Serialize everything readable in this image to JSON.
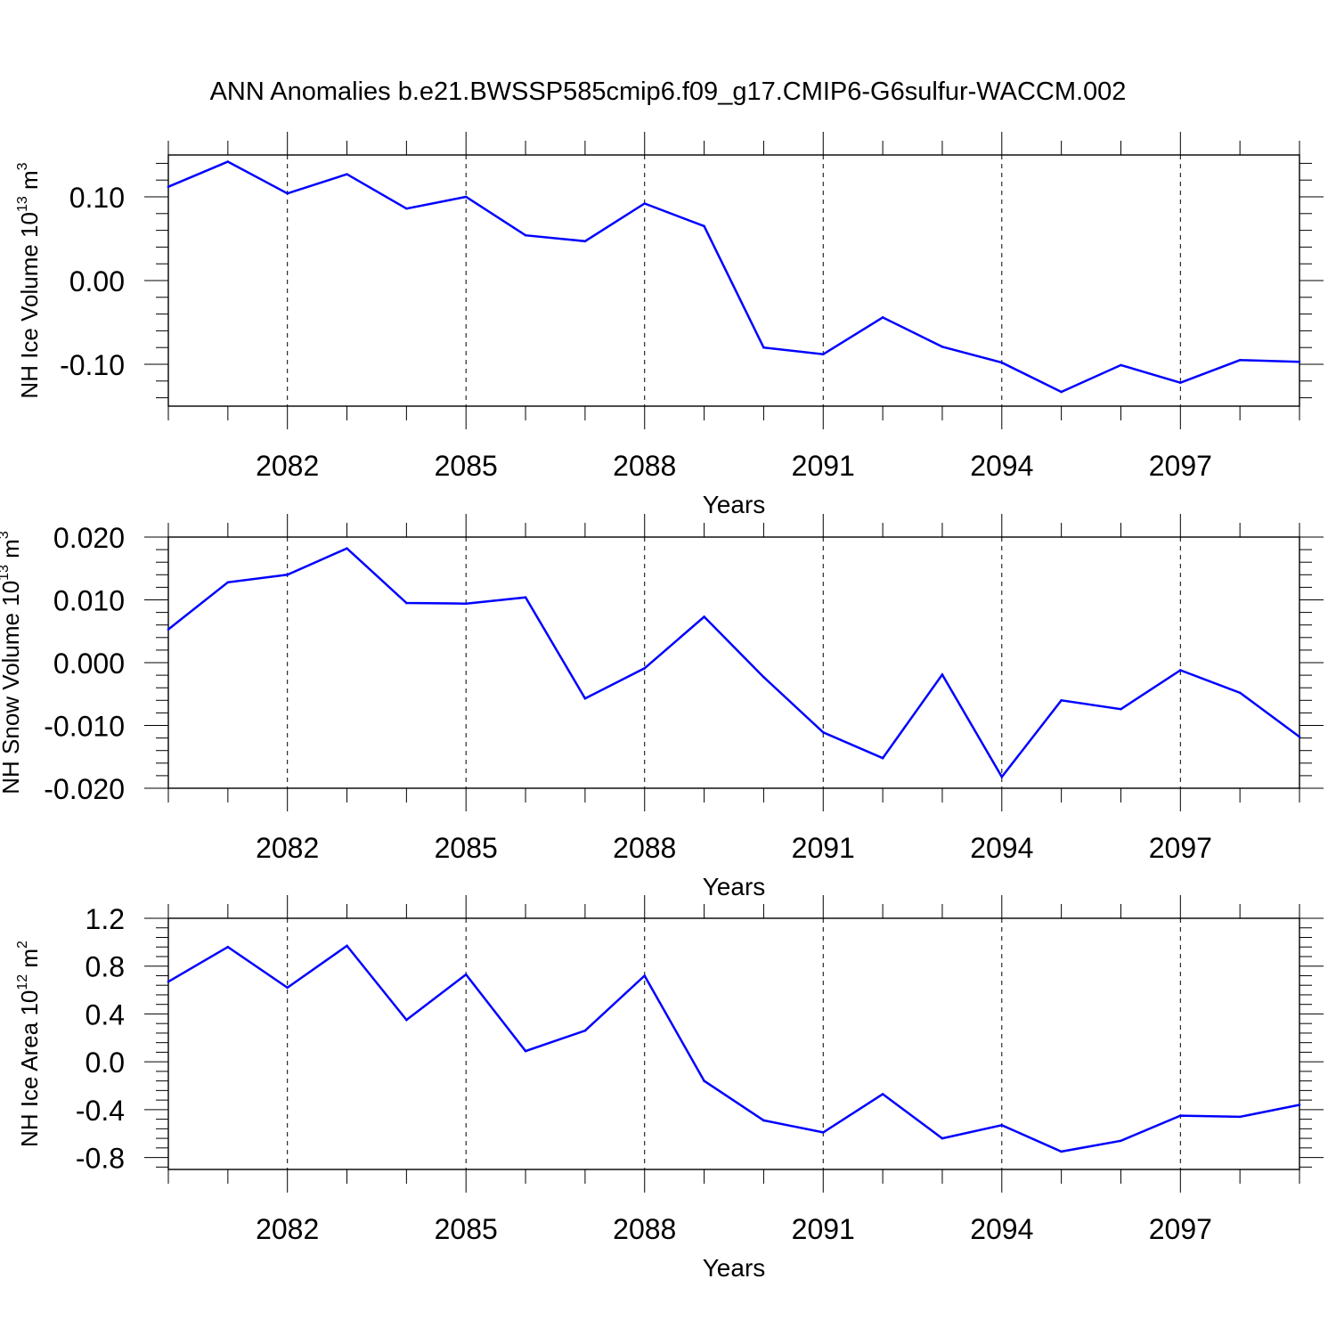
{
  "title": "ANN Anomalies b.e21.BWSSP585cmip6.f09_g17.CMIP6-G6sulfur-WACCM.002",
  "chart_data": [
    {
      "type": "line",
      "title": "",
      "ylabel": "NH Ice Volume 10",
      "ylabel_sup": "13",
      "ylabel_unit": " m",
      "ylabel_unit_sup": "3",
      "xlabel": "Years",
      "xlim": [
        2080,
        2099
      ],
      "ylim": [
        -0.15,
        0.15
      ],
      "xticks": [
        "2082",
        "2085",
        "2088",
        "2091",
        "2094",
        "2097"
      ],
      "yticks": [
        "0.10",
        "0.00",
        "-0.10"
      ],
      "ytick_values": [
        0.1,
        0.0,
        -0.1
      ],
      "grid": "vertical dashed",
      "line_color": "#0000ff",
      "series": [
        {
          "x": [
            2080,
            2081,
            2082,
            2083,
            2084,
            2085,
            2086,
            2087,
            2088,
            2089,
            2090,
            2091,
            2092,
            2093,
            2094,
            2095,
            2096,
            2097,
            2098,
            2099
          ],
          "values": [
            0.112,
            0.142,
            0.104,
            0.127,
            0.086,
            0.1,
            0.054,
            0.047,
            0.092,
            0.065,
            -0.08,
            -0.088,
            -0.044,
            -0.079,
            -0.098,
            -0.133,
            -0.101,
            -0.122,
            -0.095,
            -0.097
          ]
        }
      ]
    },
    {
      "type": "line",
      "title": "",
      "ylabel": "NH Snow Volume 10",
      "ylabel_sup": "13",
      "ylabel_unit": " m",
      "ylabel_unit_sup": "3",
      "xlabel": "Years",
      "xlim": [
        2080,
        2099
      ],
      "ylim": [
        -0.02,
        0.02
      ],
      "xticks": [
        "2082",
        "2085",
        "2088",
        "2091",
        "2094",
        "2097"
      ],
      "yticks": [
        "0.020",
        "0.010",
        "0.000",
        "-0.010",
        "-0.020"
      ],
      "ytick_values": [
        0.02,
        0.01,
        0.0,
        -0.01,
        -0.02
      ],
      "grid": "vertical dashed",
      "line_color": "#0000ff",
      "series": [
        {
          "x": [
            2080,
            2081,
            2082,
            2083,
            2084,
            2085,
            2086,
            2087,
            2088,
            2089,
            2090,
            2091,
            2092,
            2093,
            2094,
            2095,
            2096,
            2097,
            2098,
            2099
          ],
          "values": [
            0.0053,
            0.0128,
            0.014,
            0.0182,
            0.0095,
            0.0094,
            0.0104,
            -0.0057,
            -0.0009,
            0.0073,
            -0.0023,
            -0.0111,
            -0.0152,
            -0.0019,
            -0.0182,
            -0.006,
            -0.0074,
            -0.0012,
            -0.0048,
            -0.0118
          ]
        }
      ]
    },
    {
      "type": "line",
      "title": "",
      "ylabel": "NH Ice Area 10",
      "ylabel_sup": "12",
      "ylabel_unit": " m",
      "ylabel_unit_sup": "2",
      "xlabel": "Years",
      "xlim": [
        2080,
        2099
      ],
      "ylim": [
        -0.9,
        1.2
      ],
      "xticks": [
        "2082",
        "2085",
        "2088",
        "2091",
        "2094",
        "2097"
      ],
      "yticks": [
        "1.2",
        "0.8",
        "0.4",
        "0.0",
        "-0.4",
        "-0.8"
      ],
      "ytick_values": [
        1.2,
        0.8,
        0.4,
        0.0,
        -0.4,
        -0.8
      ],
      "grid": "vertical dashed",
      "line_color": "#0000ff",
      "series": [
        {
          "x": [
            2080,
            2081,
            2082,
            2083,
            2084,
            2085,
            2086,
            2087,
            2088,
            2089,
            2090,
            2091,
            2092,
            2093,
            2094,
            2095,
            2096,
            2097,
            2098,
            2099
          ],
          "values": [
            0.67,
            0.96,
            0.62,
            0.97,
            0.35,
            0.73,
            0.09,
            0.26,
            0.72,
            -0.16,
            -0.49,
            -0.59,
            -0.27,
            -0.64,
            -0.53,
            -0.75,
            -0.66,
            -0.45,
            -0.46,
            -0.36
          ]
        }
      ]
    }
  ]
}
